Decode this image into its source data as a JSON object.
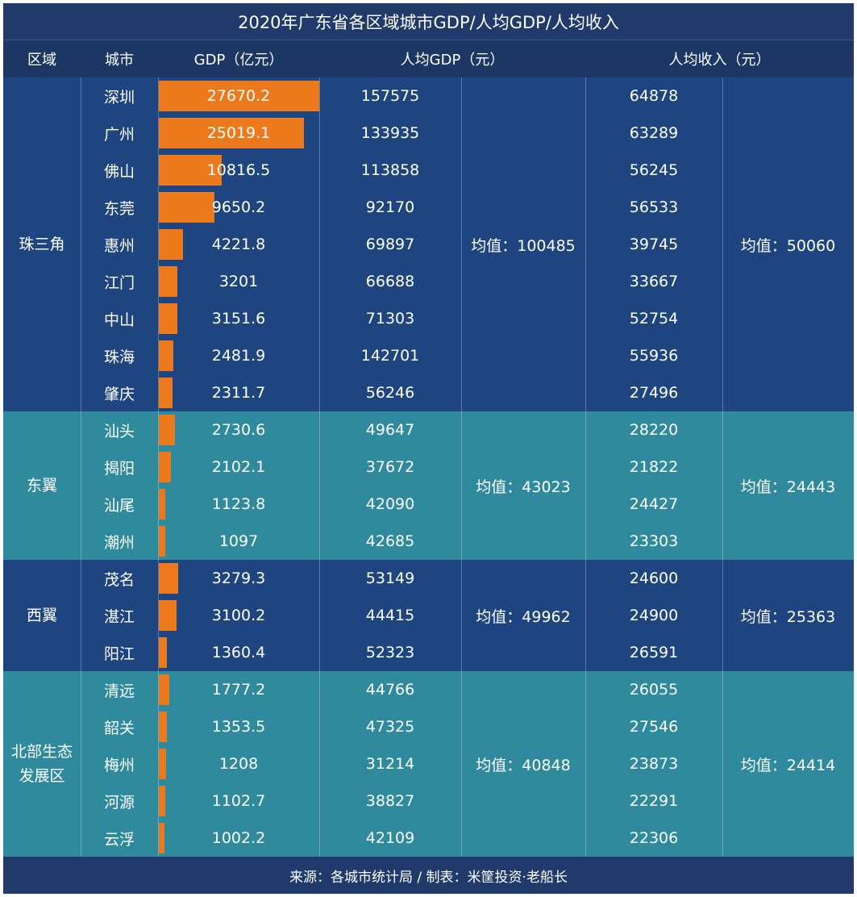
{
  "title": "2020年广东省各区域城市GDP/人均GDP/人均收入",
  "headers": {
    "region": "区域",
    "city": "城市",
    "gdp": "GDP（亿元）",
    "gdp_per_capita": "人均GDP（元）",
    "income_per_capita": "人均收入（元）"
  },
  "footer": "来源：各城市统计局 / 制表：米筐投资·老船长",
  "colors": {
    "title_bg": "#1f3a6b",
    "navy_band": "#1e4580",
    "teal_band": "#2e8a9c",
    "bar": "#ec7a1c"
  },
  "chart_data": {
    "type": "table",
    "bar_column": "gdp",
    "regions": [
      {
        "name": "珠三角",
        "band": "navy",
        "gdp_per_capita_avg": "均值：100485",
        "income_avg": "均值：50060",
        "rows": [
          {
            "city": "深圳",
            "gdp": 27670.2,
            "gdp_label": "27670.2",
            "gdp_per_capita": "157575",
            "income": "64878"
          },
          {
            "city": "广州",
            "gdp": 25019.1,
            "gdp_label": "25019.1",
            "gdp_per_capita": "133935",
            "income": "63289"
          },
          {
            "city": "佛山",
            "gdp": 10816.5,
            "gdp_label": "10816.5",
            "gdp_per_capita": "113858",
            "income": "56245"
          },
          {
            "city": "东莞",
            "gdp": 9650.2,
            "gdp_label": "9650.2",
            "gdp_per_capita": "92170",
            "income": "56533"
          },
          {
            "city": "惠州",
            "gdp": 4221.8,
            "gdp_label": "4221.8",
            "gdp_per_capita": "69897",
            "income": "39745"
          },
          {
            "city": "江门",
            "gdp": 3201,
            "gdp_label": "3201",
            "gdp_per_capita": "66688",
            "income": "33667"
          },
          {
            "city": "中山",
            "gdp": 3151.6,
            "gdp_label": "3151.6",
            "gdp_per_capita": "71303",
            "income": "52754"
          },
          {
            "city": "珠海",
            "gdp": 2481.9,
            "gdp_label": "2481.9",
            "gdp_per_capita": "142701",
            "income": "55936"
          },
          {
            "city": "肇庆",
            "gdp": 2311.7,
            "gdp_label": "2311.7",
            "gdp_per_capita": "56246",
            "income": "27496"
          }
        ]
      },
      {
        "name": "东翼",
        "band": "teal",
        "gdp_per_capita_avg": "均值：43023",
        "income_avg": "均值：24443",
        "rows": [
          {
            "city": "汕头",
            "gdp": 2730.6,
            "gdp_label": "2730.6",
            "gdp_per_capita": "49647",
            "income": "28220"
          },
          {
            "city": "揭阳",
            "gdp": 2102.1,
            "gdp_label": "2102.1",
            "gdp_per_capita": "37672",
            "income": "21822"
          },
          {
            "city": "汕尾",
            "gdp": 1123.8,
            "gdp_label": "1123.8",
            "gdp_per_capita": "42090",
            "income": "24427"
          },
          {
            "city": "潮州",
            "gdp": 1097,
            "gdp_label": "1097",
            "gdp_per_capita": "42685",
            "income": "23303"
          }
        ]
      },
      {
        "name": "西翼",
        "band": "navy",
        "gdp_per_capita_avg": "均值：49962",
        "income_avg": "均值：25363",
        "rows": [
          {
            "city": "茂名",
            "gdp": 3279.3,
            "gdp_label": "3279.3",
            "gdp_per_capita": "53149",
            "income": "24600"
          },
          {
            "city": "湛江",
            "gdp": 3100.2,
            "gdp_label": "3100.2",
            "gdp_per_capita": "44415",
            "income": "24900"
          },
          {
            "city": "阳江",
            "gdp": 1360.4,
            "gdp_label": "1360.4",
            "gdp_per_capita": "52323",
            "income": "26591"
          }
        ]
      },
      {
        "name": "北部生态\n发展区",
        "band": "teal",
        "gdp_per_capita_avg": "均值：40848",
        "income_avg": "均值：24414",
        "rows": [
          {
            "city": "清远",
            "gdp": 1777.2,
            "gdp_label": "1777.2",
            "gdp_per_capita": "44766",
            "income": "26055"
          },
          {
            "city": "韶关",
            "gdp": 1353.5,
            "gdp_label": "1353.5",
            "gdp_per_capita": "47325",
            "income": "27546"
          },
          {
            "city": "梅州",
            "gdp": 1208,
            "gdp_label": "1208",
            "gdp_per_capita": "31214",
            "income": "23873"
          },
          {
            "city": "河源",
            "gdp": 1102.7,
            "gdp_label": "1102.7",
            "gdp_per_capita": "38827",
            "income": "22291"
          },
          {
            "city": "云浮",
            "gdp": 1002.2,
            "gdp_label": "1002.2",
            "gdp_per_capita": "42109",
            "income": "22306"
          }
        ]
      }
    ]
  }
}
